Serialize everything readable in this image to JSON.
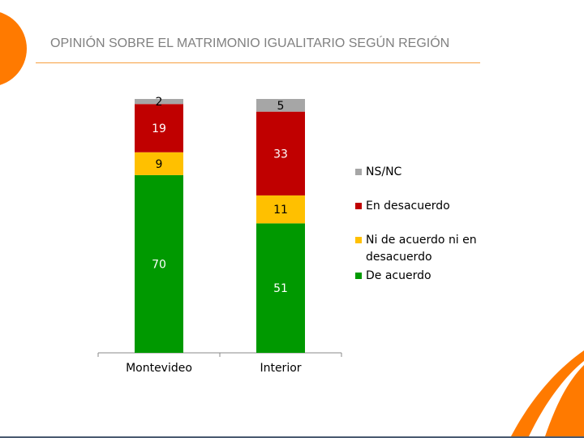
{
  "title": "OPINIÓN SOBRE EL MATRIMONIO IGUALITARIO SEGÚN REGIÓN",
  "chart_data": {
    "type": "bar",
    "stacked": true,
    "title": "OPINIÓN SOBRE EL MATRIMONIO IGUALITARIO SEGÚN REGIÓN",
    "categories": [
      "Montevideo",
      "Interior"
    ],
    "series": [
      {
        "name": "De acuerdo",
        "color": "#009900",
        "values": [
          70,
          51
        ]
      },
      {
        "name": "Ni de acuerdo ni en desacuerdo",
        "color": "#ffc000",
        "values": [
          9,
          11
        ]
      },
      {
        "name": "En desacuerdo",
        "color": "#c00000",
        "values": [
          19,
          33
        ]
      },
      {
        "name": "NS/NC",
        "color": "#a6a6a6",
        "values": [
          2,
          5
        ]
      }
    ],
    "legend_order": [
      "NS/NC",
      "En desacuerdo",
      "Ni de acuerdo ni en\ndesacuerdo",
      "De acuerdo"
    ],
    "ylim": [
      0,
      100
    ],
    "legend_position": "right",
    "grid": false
  }
}
